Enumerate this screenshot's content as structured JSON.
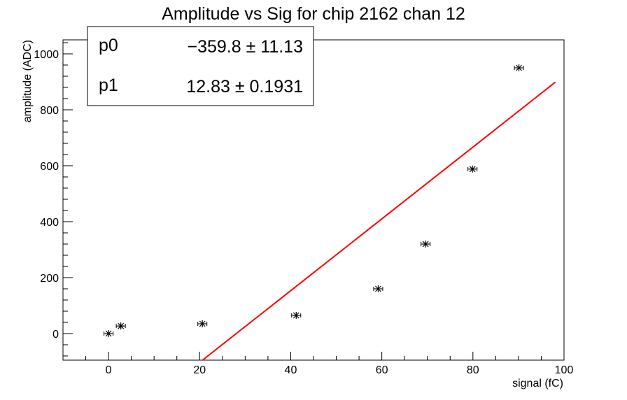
{
  "chart_data": {
    "type": "scatter",
    "title": "Amplitude vs Sig for chip 2162 chan 12",
    "xlabel": "signal (fC)",
    "ylabel": "amplitude (ADC)",
    "xlim": [
      -10,
      100
    ],
    "ylim": [
      -95,
      1050
    ],
    "x_ticks": [
      "0",
      "20",
      "40",
      "60",
      "80",
      "100"
    ],
    "y_ticks": [
      "0",
      "200",
      "400",
      "600",
      "800",
      "1000"
    ],
    "grid": false,
    "points": [
      {
        "x": 0.0,
        "y": 0,
        "xerr": 1.0
      },
      {
        "x": 2.7,
        "y": 27,
        "xerr": 1.0
      },
      {
        "x": 20.6,
        "y": 35,
        "xerr": 1.0
      },
      {
        "x": 41.2,
        "y": 65,
        "xerr": 1.0
      },
      {
        "x": 59.2,
        "y": 160,
        "xerr": 1.0
      },
      {
        "x": 69.6,
        "y": 320,
        "xerr": 1.0
      },
      {
        "x": 79.9,
        "y": 588,
        "xerr": 1.0
      },
      {
        "x": 90.1,
        "y": 950,
        "xerr": 1.0
      }
    ],
    "fit": {
      "function": "pol1",
      "color": "#ff0000",
      "x_start": 20.7,
      "x_end": 98.1
    },
    "stats_box": {
      "placement": "top-left",
      "rows": [
        {
          "name": "p0",
          "value": "−359.8 ± 11.13"
        },
        {
          "name": "p1",
          "value": "12.83 ± 0.1931"
        }
      ]
    },
    "colors": {
      "marker": "#000000",
      "fit_line": "#ff0000",
      "frame": "#000000"
    }
  }
}
